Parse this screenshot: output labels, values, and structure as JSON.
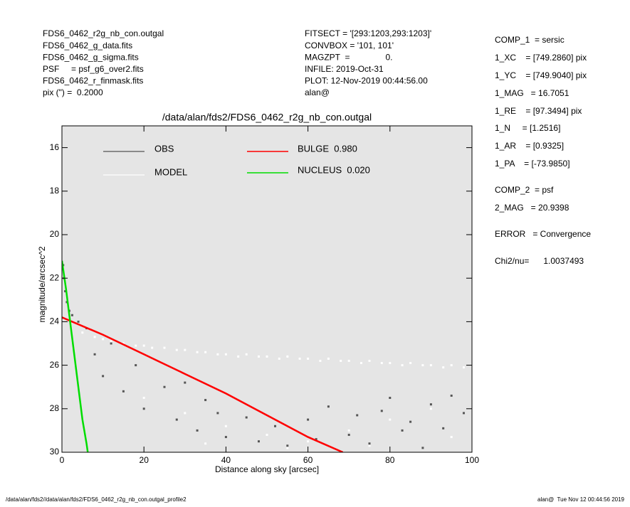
{
  "header": {
    "left": [
      "FDS6_0462_r2g_nb_con.outgal",
      "FDS6_0462_g_data.fits",
      "FDS6_0462_g_sigma.fits",
      "PSF     = psf_g6_over2.fits",
      "FDS6_0462_r_finmask.fits",
      "pix (\") =  0.2000"
    ],
    "middle": [
      "FITSECT = '[293:1203,293:1203]'",
      "CONVBOX = '101, 101'",
      "MAGZPT  =               0.",
      "INFILE: 2019-Oct-31",
      "PLOT: 12-Nov-2019 00:44:56.00",
      "alan@"
    ]
  },
  "params": [
    "COMP_1  = sersic",
    "1_XC    = [749.2860] pix",
    "1_YC    = [749.9040] pix",
    "1_MAG   = 16.7051",
    "1_RE    = [97.3494] pix",
    "1_N     = [1.2516]",
    "1_AR    = [0.9325]",
    "1_PA    = [-73.9850]",
    "COMP_2  = psf",
    "2_MAG   = 20.9398",
    "ERROR   = Convergence",
    "Chi2/nu=      1.0037493"
  ],
  "footer": {
    "left": "/data/alan/fds2//data/alan/fds2/FDS6_0462_r2g_nb_con.outgal_profile2",
    "right": "alan@  Tue Nov 12 00:44:56 2019"
  },
  "chart_data": {
    "type": "scatter",
    "title": "/data/alan/fds2/FDS6_0462_r2g_nb_con.outgal",
    "xlabel": "Distance along sky [arcsec]",
    "ylabel": "magnitude/arcsec^2",
    "xlim": [
      0,
      100
    ],
    "ylim": [
      30,
      15
    ],
    "xticks": [
      0,
      20,
      40,
      60,
      80,
      100
    ],
    "yticks": [
      16,
      18,
      20,
      22,
      24,
      26,
      28,
      30
    ],
    "background": "#e5e5e5",
    "series": [
      {
        "name": "MODEL",
        "color": "#ffffff",
        "mode": "markers",
        "x": [
          5,
          8,
          10,
          12,
          15,
          18,
          20,
          22,
          25,
          28,
          30,
          33,
          35,
          38,
          40,
          43,
          45,
          48,
          50,
          53,
          55,
          58,
          60,
          63,
          65,
          68,
          70,
          73,
          75,
          78,
          80,
          83,
          85,
          88,
          90,
          93,
          95,
          98,
          20,
          30,
          40,
          50,
          60,
          70,
          80,
          90,
          35,
          55,
          75,
          95
        ],
        "values": [
          24.5,
          24.7,
          24.8,
          24.9,
          25.0,
          25.1,
          25.1,
          25.2,
          25.2,
          25.3,
          25.3,
          25.4,
          25.4,
          25.5,
          25.5,
          25.6,
          25.5,
          25.6,
          25.6,
          25.7,
          25.6,
          25.7,
          25.7,
          25.8,
          25.7,
          25.8,
          25.8,
          25.9,
          25.8,
          25.9,
          25.9,
          26.0,
          25.9,
          26.0,
          26.0,
          26.1,
          26.0,
          26.1,
          27.5,
          28.2,
          28.8,
          29.2,
          29.5,
          29.0,
          28.5,
          28.0,
          29.6,
          29.8,
          29.7,
          29.3
        ]
      },
      {
        "name": "OBS",
        "color": "#555555",
        "mode": "markers",
        "x": [
          0.3,
          0.5,
          0.8,
          1.2,
          1.8,
          2.5,
          4,
          6,
          8,
          10,
          12,
          15,
          18,
          20,
          25,
          28,
          30,
          33,
          35,
          38,
          40,
          45,
          48,
          52,
          55,
          60,
          62,
          65,
          70,
          72,
          75,
          78,
          80,
          83,
          85,
          88,
          90,
          93,
          95,
          98
        ],
        "values": [
          21.4,
          22.0,
          22.6,
          23.1,
          23.5,
          23.7,
          24.0,
          24.3,
          25.5,
          26.5,
          25.0,
          27.2,
          26.0,
          28.0,
          27.0,
          28.5,
          26.8,
          29.0,
          27.6,
          28.2,
          29.3,
          28.4,
          29.5,
          28.8,
          29.7,
          28.5,
          29.4,
          27.9,
          29.2,
          28.3,
          29.6,
          28.1,
          27.5,
          29.0,
          28.6,
          29.8,
          27.8,
          28.9,
          27.4,
          28.2
        ]
      },
      {
        "name": "BULGE  0.980",
        "color": "#ff0000",
        "mode": "lines",
        "x": [
          0,
          10,
          20,
          30,
          40,
          50,
          60,
          68.5
        ],
        "values": [
          23.8,
          24.6,
          25.5,
          26.4,
          27.3,
          28.3,
          29.3,
          30
        ]
      },
      {
        "name": "NUCLEUS  0.020",
        "color": "#00dd00",
        "mode": "lines",
        "x": [
          0,
          1,
          2,
          3,
          4,
          5,
          6,
          6.3
        ],
        "values": [
          21.2,
          22.5,
          24.0,
          25.5,
          27.0,
          28.5,
          29.6,
          30
        ]
      }
    ]
  }
}
